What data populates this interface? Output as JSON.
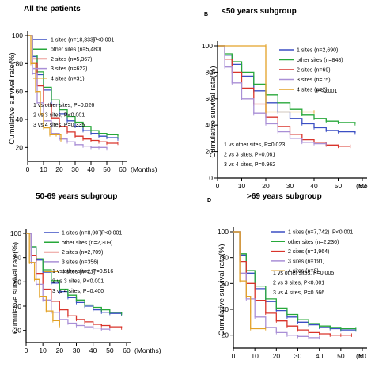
{
  "colors": {
    "1 sites": "#3b4fc4",
    "other sites": "#27a83a",
    "2 sites": "#d9342b",
    "3 sites": "#a98fd6",
    "4 sites": "#e3a227"
  },
  "chart_data": [
    {
      "type": "line",
      "panel_letter": "",
      "title": "All the patients",
      "ylabel": "Cumulative survival rate(%)",
      "xlabel_suffix": "(Months)",
      "xlim": [
        0,
        60
      ],
      "ylim": [
        10,
        100
      ],
      "x_ticks": [
        "0",
        "10",
        "20",
        "30",
        "40",
        "50",
        "60"
      ],
      "y_ticks": [
        "100",
        "80",
        "60",
        "40",
        "20"
      ],
      "legend": [
        {
          "series": "1 sites",
          "label": "1 sites (n=18,833)",
          "p": "P<0.001"
        },
        {
          "series": "other sites",
          "label": "other sites (n=5,480)",
          "p": ""
        },
        {
          "series": "2 sites",
          "label": "2 sites (n=5,367)",
          "p": ""
        },
        {
          "series": "3 sites",
          "label": "3 sites (n=622)",
          "p": ""
        },
        {
          "series": "4 sites",
          "label": "4 sites (n=31)",
          "p": ""
        }
      ],
      "annotations": [
        "1 vs other sites, P=0.026",
        "2 vs 3 sites, P<0.001",
        "3 vs 4 sites, P=0.335"
      ],
      "series": [
        {
          "name": "1 sites",
          "x": [
            0,
            3,
            6,
            10,
            15,
            20,
            25,
            30,
            35,
            40,
            45,
            50,
            57
          ],
          "y": [
            100,
            85,
            72,
            61,
            51,
            44,
            39,
            35,
            32,
            30,
            28,
            27,
            26
          ]
        },
        {
          "name": "other sites",
          "x": [
            0,
            3,
            6,
            10,
            15,
            20,
            25,
            30,
            35,
            40,
            45,
            50,
            57
          ],
          "y": [
            100,
            86,
            74,
            63,
            54,
            47,
            42,
            38,
            35,
            32,
            30,
            29,
            28
          ]
        },
        {
          "name": "2 sites",
          "x": [
            0,
            3,
            6,
            10,
            15,
            20,
            25,
            30,
            35,
            40,
            45,
            50,
            57
          ],
          "y": [
            100,
            80,
            64,
            51,
            41,
            35,
            31,
            28,
            26,
            25,
            24,
            23,
            23
          ]
        },
        {
          "name": "3 sites",
          "x": [
            0,
            3,
            6,
            10,
            15,
            20,
            25,
            30,
            35,
            40,
            45,
            50
          ],
          "y": [
            100,
            73,
            52,
            39,
            30,
            26,
            24,
            22,
            21,
            20,
            20,
            19
          ]
        },
        {
          "name": "4 sites",
          "x": [
            0,
            2,
            5,
            8,
            10,
            14,
            18,
            21
          ],
          "y": [
            100,
            80,
            60,
            44,
            34,
            29,
            29,
            25
          ]
        }
      ]
    },
    {
      "type": "line",
      "panel_letter": "B",
      "title": "<50 years  subgroup",
      "ylabel": "Cumulative survival rate(%)",
      "xlabel_suffix": "(Mo",
      "xlim": [
        0,
        60
      ],
      "ylim": [
        0,
        100
      ],
      "x_ticks": [
        "0",
        "10",
        "20",
        "30",
        "40",
        "50",
        "60"
      ],
      "y_ticks": [
        "100",
        "80",
        "60",
        "40",
        "20",
        "0"
      ],
      "legend": [
        {
          "series": "1 sites",
          "label": "1 sites (n=2,690)",
          "p": ""
        },
        {
          "series": "other sites",
          "label": "other sites (n=848)",
          "p": ""
        },
        {
          "series": "2 sites",
          "label": "2 sites (n=69)",
          "p": ""
        },
        {
          "series": "3 sites",
          "label": "3 sites (n=75)",
          "p": ""
        },
        {
          "series": "4 sites",
          "label": "4 sites (n=2)",
          "p": ""
        }
      ],
      "legend_p": "P<0.001",
      "annotations": [
        "1 vs other sites, P=0.023",
        "2 vs 3 sites, P=0.061",
        "3 vs 4 sites, P=0.962"
      ],
      "series": [
        {
          "name": "1 sites",
          "x": [
            0,
            3,
            6,
            10,
            15,
            20,
            25,
            30,
            35,
            40,
            45,
            50,
            57
          ],
          "y": [
            100,
            93,
            86,
            77,
            66,
            57,
            50,
            45,
            41,
            38,
            36,
            35,
            34
          ]
        },
        {
          "name": "other sites",
          "x": [
            0,
            3,
            6,
            10,
            15,
            20,
            25,
            30,
            35,
            40,
            45,
            50,
            57
          ],
          "y": [
            100,
            94,
            88,
            80,
            71,
            63,
            57,
            52,
            48,
            45,
            43,
            42,
            41
          ]
        },
        {
          "name": "2 sites",
          "x": [
            0,
            3,
            6,
            10,
            15,
            20,
            25,
            30,
            35,
            40,
            45,
            50,
            55
          ],
          "y": [
            100,
            90,
            80,
            68,
            56,
            46,
            39,
            33,
            29,
            27,
            25,
            24,
            24
          ]
        },
        {
          "name": "3 sites",
          "x": [
            0,
            3,
            6,
            10,
            15,
            20,
            25,
            30,
            35,
            40,
            45
          ],
          "y": [
            100,
            84,
            72,
            60,
            49,
            41,
            35,
            30,
            27,
            26,
            26
          ]
        },
        {
          "name": "4 sites",
          "x": [
            0,
            20,
            20,
            40
          ],
          "y": [
            100,
            100,
            50,
            50
          ]
        }
      ]
    },
    {
      "type": "line",
      "panel_letter": "",
      "title": "50-69 years subgroup",
      "ylabel": "Cumulative survival rate(%)",
      "xlabel_suffix": "(Months)",
      "xlim": [
        0,
        60
      ],
      "ylim": [
        10,
        100
      ],
      "x_ticks": [
        "0",
        "10",
        "20",
        "30",
        "40",
        "50",
        "60"
      ],
      "y_ticks": [
        "100",
        "80",
        "60",
        "40",
        "20"
      ],
      "legend": [
        {
          "series": "1 sites",
          "label": "1 sites (n=8,90`)",
          "p": "P<0.001"
        },
        {
          "series": "other sites",
          "label": "other sites (n=2,309)",
          "p": ""
        },
        {
          "series": "2 sites",
          "label": "2 sites (n=2,709)",
          "p": ""
        },
        {
          "series": "3 sites",
          "label": "3 sites (n=356)",
          "p": ""
        },
        {
          "series": "4 sites",
          "label": "4 sites (n=21)",
          "p": ""
        }
      ],
      "annotations": [
        "1 vs other sites, P=0.516",
        "2 vs 3 sites, P<0.001",
        "3 vs 4 sites, P=0.400"
      ],
      "series": [
        {
          "name": "1 sites",
          "x": [
            0,
            3,
            6,
            10,
            15,
            20,
            25,
            30,
            35,
            40,
            45,
            50,
            57
          ],
          "y": [
            100,
            88,
            78,
            68,
            59,
            52,
            47,
            43,
            40,
            37,
            35,
            34,
            33
          ]
        },
        {
          "name": "other sites",
          "x": [
            0,
            3,
            6,
            10,
            15,
            20,
            25,
            30,
            35,
            40,
            45,
            50,
            57
          ],
          "y": [
            100,
            89,
            79,
            70,
            61,
            54,
            49,
            45,
            41,
            39,
            37,
            35,
            34
          ]
        },
        {
          "name": "2 sites",
          "x": [
            0,
            3,
            6,
            10,
            15,
            20,
            25,
            30,
            35,
            40,
            45,
            50,
            57
          ],
          "y": [
            100,
            82,
            67,
            54,
            44,
            37,
            32,
            29,
            27,
            25,
            24,
            23,
            22
          ]
        },
        {
          "name": "3 sites",
          "x": [
            0,
            3,
            6,
            10,
            15,
            20,
            25,
            30,
            35,
            40,
            45,
            50
          ],
          "y": [
            100,
            76,
            58,
            45,
            35,
            29,
            26,
            24,
            23,
            22,
            21,
            21
          ]
        },
        {
          "name": "4 sites",
          "x": [
            0,
            2,
            5,
            8,
            12,
            16,
            20
          ],
          "y": [
            100,
            76,
            62,
            48,
            36,
            28,
            24
          ]
        }
      ]
    },
    {
      "type": "line",
      "panel_letter": "D",
      "title": ">69 years subgroup",
      "ylabel": "Cumulative survival rate(%)",
      "xlabel_suffix": "(M",
      "xlim": [
        0,
        60
      ],
      "ylim": [
        10,
        100
      ],
      "x_ticks": [
        "0",
        "10",
        "20",
        "30",
        "40",
        "50",
        "60"
      ],
      "y_ticks": [
        "100",
        "80",
        "60",
        "40",
        "20"
      ],
      "legend": [
        {
          "series": "1 sites",
          "label": "1 sites (n=7,742)",
          "p": "P<0.001"
        },
        {
          "series": "other sites",
          "label": "other sites (n=2,236)",
          "p": ""
        },
        {
          "series": "2 sites",
          "label": "2 sites (n=1,964)",
          "p": ""
        },
        {
          "series": "3 sites",
          "label": "3 sites (n=191)",
          "p": ""
        },
        {
          "series": "4 sites",
          "label": "4 sites (n=8)",
          "p": ""
        }
      ],
      "annotations": [
        "1 vs other sites, P=0.005",
        "2 vs 3 sites, P<0.001",
        "3 vs 4 sites, P=0.566"
      ],
      "series": [
        {
          "name": "1 sites",
          "x": [
            0,
            3,
            6,
            10,
            15,
            20,
            25,
            30,
            35,
            40,
            45,
            50,
            57
          ],
          "y": [
            100,
            82,
            68,
            56,
            46,
            39,
            34,
            30,
            28,
            26,
            25,
            24,
            24
          ]
        },
        {
          "name": "other sites",
          "x": [
            0,
            3,
            6,
            10,
            15,
            20,
            25,
            30,
            35,
            40,
            45,
            50,
            57
          ],
          "y": [
            100,
            83,
            70,
            58,
            48,
            41,
            36,
            32,
            29,
            27,
            26,
            25,
            25
          ]
        },
        {
          "name": "2 sites",
          "x": [
            0,
            3,
            6,
            10,
            15,
            20,
            25,
            30,
            35,
            40,
            45,
            50,
            55
          ],
          "y": [
            100,
            77,
            60,
            47,
            37,
            31,
            27,
            24,
            22,
            21,
            20,
            20,
            20
          ]
        },
        {
          "name": "3 sites",
          "x": [
            0,
            3,
            6,
            10,
            15,
            20,
            25,
            30,
            35,
            40
          ],
          "y": [
            100,
            68,
            48,
            34,
            26,
            22,
            20,
            19,
            18,
            18
          ]
        },
        {
          "name": "4 sites",
          "x": [
            0,
            3,
            6,
            8,
            8,
            15
          ],
          "y": [
            100,
            62,
            50,
            38,
            25,
            25
          ]
        }
      ]
    }
  ]
}
